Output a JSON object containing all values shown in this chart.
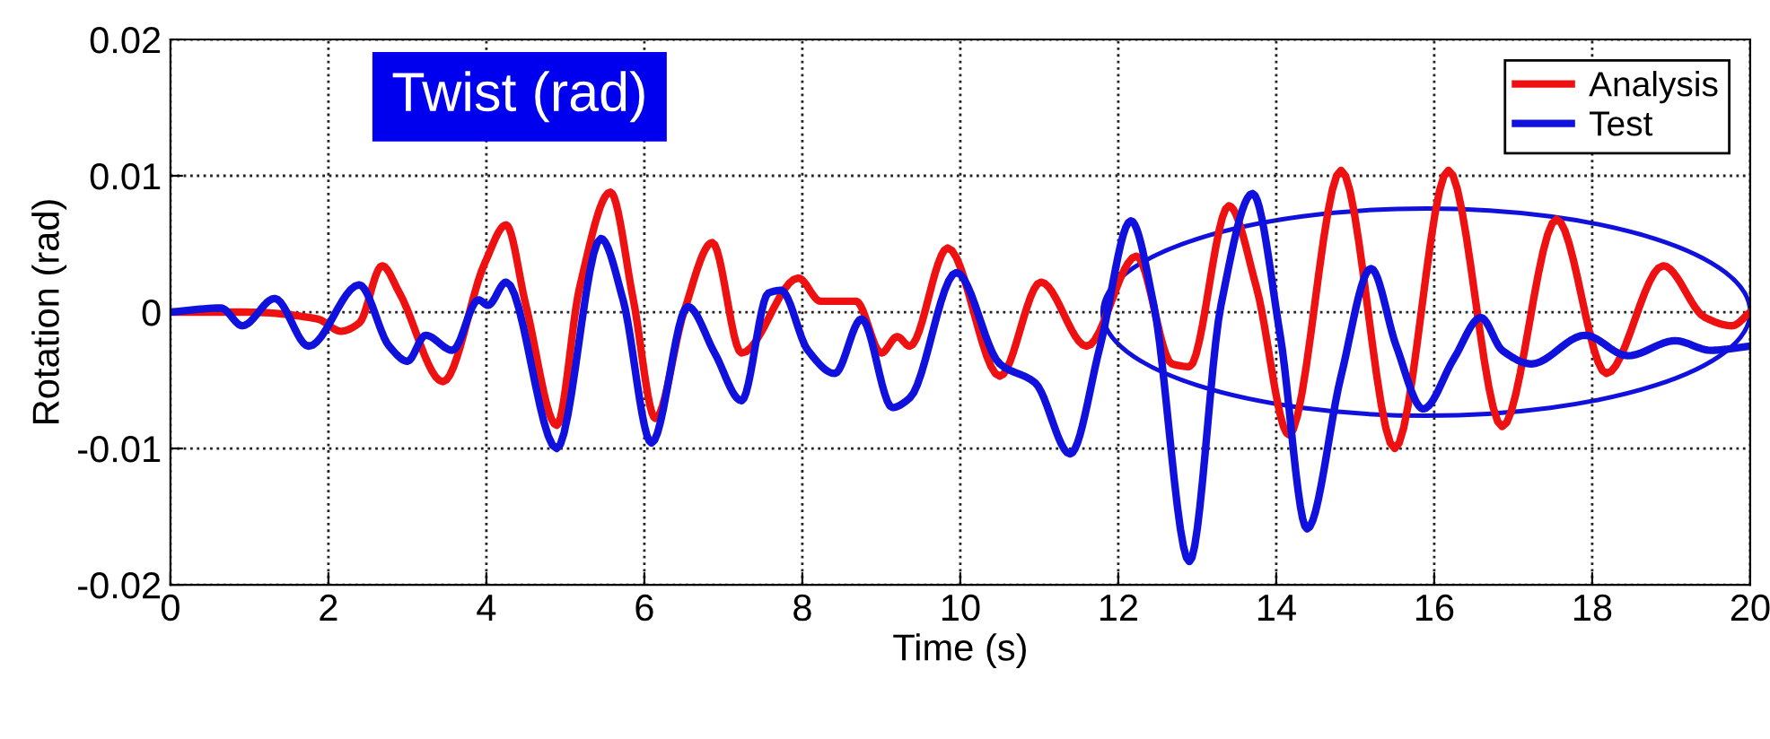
{
  "chart_data": {
    "type": "line",
    "title": "Twist (rad)",
    "xlabel": "Time (s)",
    "ylabel": "Rotation (rad)",
    "xlim": [
      0,
      20
    ],
    "xticks": [
      0,
      2,
      4,
      6,
      8,
      10,
      12,
      14,
      16,
      18,
      20
    ],
    "ylim": [
      -0.02,
      0.02
    ],
    "yticks": [
      -0.02,
      -0.01,
      0,
      0.01,
      0.02
    ],
    "grid": true,
    "legend": "top right",
    "marker": "none",
    "line_style": "solid",
    "series": [
      {
        "name": "Analysis",
        "color": "#ee1111",
        "x": [
          0,
          0.95,
          1.86,
          2.16,
          2.39,
          2.68,
          2.9,
          3.45,
          3.98,
          4.25,
          4.5,
          4.89,
          5.18,
          5.57,
          5.86,
          6.14,
          6.5,
          6.86,
          7.23,
          7.95,
          8.23,
          8.68,
          9.0,
          9.2,
          9.36,
          9.84,
          10.5,
          11.02,
          11.6,
          12.23,
          12.68,
          12.9,
          13.4,
          13.75,
          14.16,
          14.82,
          15.5,
          16.18,
          16.86,
          17.55,
          18.18,
          18.9,
          19.43,
          19.77,
          20
        ],
        "values": [
          0,
          0,
          -0.0005,
          -0.0014,
          -0.0008,
          0.0034,
          0.0014,
          -0.0051,
          0.0036,
          0.0064,
          0.0005,
          -0.0083,
          0.0018,
          0.0088,
          0.0009,
          -0.0078,
          0.0,
          0.0051,
          -0.003,
          0.0025,
          0.0008,
          0.0008,
          -0.003,
          -0.0018,
          -0.0025,
          0.0047,
          -0.0047,
          0.0022,
          -0.0025,
          0.0041,
          -0.0038,
          -0.004,
          0.0078,
          0.0018,
          -0.009,
          0.0104,
          -0.01,
          0.0104,
          -0.0084,
          0.0068,
          -0.0045,
          0.0034,
          -0.0004,
          -0.001,
          0.0
        ]
      },
      {
        "name": "Test",
        "color": "#1111dd",
        "x": [
          0,
          0.64,
          0.91,
          1.32,
          1.75,
          2.39,
          2.77,
          3.0,
          3.23,
          3.57,
          3.9,
          4.02,
          4.25,
          4.89,
          5.45,
          5.73,
          6.09,
          6.55,
          6.89,
          7.23,
          7.57,
          7.73,
          8.07,
          8.41,
          8.75,
          9.14,
          9.36,
          9.95,
          10.5,
          10.95,
          11.39,
          11.77,
          12.16,
          12.45,
          12.9,
          13.3,
          13.7,
          14.05,
          14.39,
          14.82,
          15.2,
          15.52,
          15.86,
          16.25,
          16.59,
          16.86,
          17.23,
          17.91,
          18.45,
          19.05,
          19.5,
          20
        ],
        "values": [
          0,
          0.0003,
          -0.001,
          0.001,
          -0.0025,
          0.002,
          -0.0025,
          -0.0036,
          -0.0017,
          -0.0028,
          0.0009,
          0.0005,
          0.0022,
          -0.01,
          0.0054,
          0.0009,
          -0.0096,
          0.0004,
          -0.003,
          -0.0065,
          0.0014,
          0.0016,
          -0.0028,
          -0.0045,
          -0.0005,
          -0.007,
          -0.0063,
          0.0029,
          -0.0038,
          -0.0052,
          -0.0104,
          -0.0025,
          0.0067,
          0.0005,
          -0.0183,
          0.0005,
          0.0087,
          -0.0017,
          -0.0159,
          -0.0047,
          0.0032,
          -0.0025,
          -0.0071,
          -0.0034,
          -0.0004,
          -0.0028,
          -0.0038,
          -0.0017,
          -0.0032,
          -0.0021,
          -0.0028,
          -0.0025
        ]
      }
    ]
  }
}
